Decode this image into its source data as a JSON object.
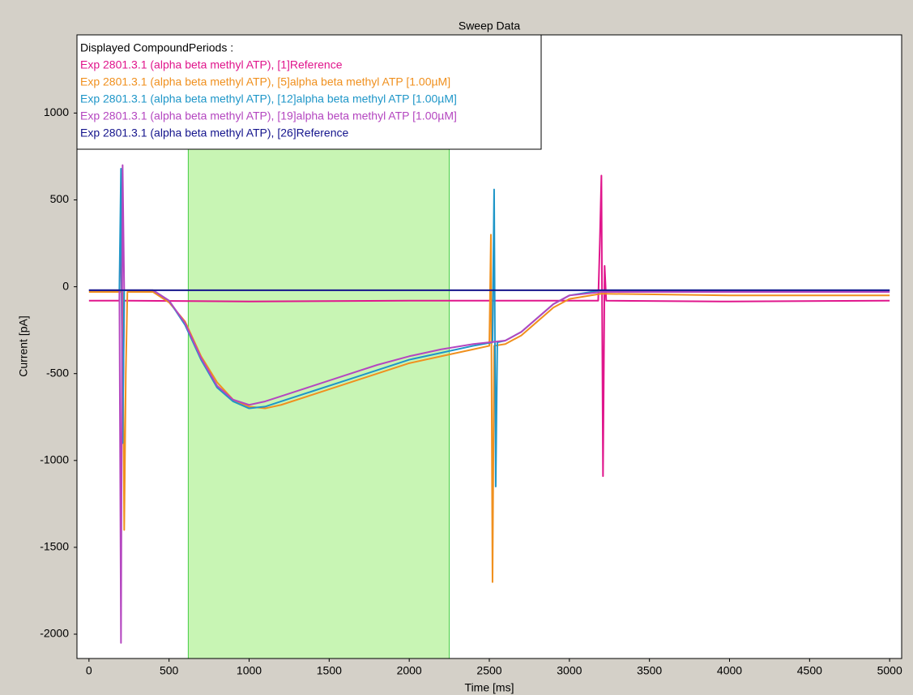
{
  "chart_data": {
    "type": "line",
    "title": "Sweep Data",
    "x_label": "Time [ms]",
    "y_label": "Current [pA]",
    "legend_title": "Displayed CompoundPeriods :",
    "xlim": [
      -75,
      5075
    ],
    "ylim": [
      -2140,
      1450
    ],
    "xticks": [
      0,
      500,
      1000,
      1500,
      2000,
      2500,
      3000,
      3500,
      4000,
      4500,
      5000
    ],
    "yticks": [
      1000,
      500,
      0,
      -500,
      -1000,
      -1500,
      -2000
    ],
    "highlight_xrange": [
      620,
      2250
    ],
    "highlight_color": "#c8f5b4",
    "series": [
      {
        "name": "Exp 2801.3.1 (alpha beta methyl ATP), [1]Reference",
        "color": "#e0168c",
        "x": [
          0,
          190,
          200,
          210,
          220,
          230,
          1000,
          2000,
          3180,
          3190,
          3200,
          3210,
          3220,
          3230,
          4000,
          5000
        ],
        "values": [
          -80,
          -80,
          500,
          -900,
          -80,
          -80,
          -85,
          -80,
          -80,
          250,
          640,
          -1090,
          120,
          -80,
          -85,
          -80
        ]
      },
      {
        "name": "Exp 2801.3.1 (alpha beta methyl ATP), [5]alpha beta methyl ATP [1.00µM]",
        "color": "#f0901e",
        "x": [
          0,
          210,
          220,
          230,
          240,
          400,
          500,
          600,
          700,
          800,
          900,
          1000,
          1100,
          1200,
          1400,
          1600,
          1800,
          2000,
          2200,
          2400,
          2500,
          2510,
          2520,
          2530,
          2600,
          2700,
          2800,
          2900,
          3000,
          3200,
          4000,
          5000
        ],
        "values": [
          -30,
          -30,
          -1400,
          -500,
          -30,
          -30,
          -90,
          -200,
          -400,
          -550,
          -650,
          -690,
          -700,
          -680,
          -620,
          -560,
          -500,
          -440,
          -400,
          -360,
          -340,
          300,
          -1700,
          -340,
          -330,
          -280,
          -200,
          -120,
          -70,
          -40,
          -50,
          -50
        ]
      },
      {
        "name": "Exp 2801.3.1 (alpha beta methyl ATP), [12]alpha beta methyl ATP [1.00µM]",
        "color": "#1e96c8",
        "x": [
          0,
          190,
          200,
          210,
          220,
          400,
          500,
          600,
          700,
          800,
          900,
          1000,
          1100,
          1200,
          1400,
          1600,
          1800,
          2000,
          2200,
          2400,
          2520,
          2530,
          2540,
          2550,
          2600,
          2700,
          2800,
          2900,
          3000,
          3200,
          4000,
          5000
        ],
        "values": [
          -20,
          -20,
          680,
          -900,
          -20,
          -20,
          -80,
          -220,
          -420,
          -580,
          -660,
          -700,
          -690,
          -660,
          -600,
          -540,
          -480,
          -420,
          -380,
          -340,
          -320,
          560,
          -1150,
          -320,
          -310,
          -260,
          -180,
          -100,
          -50,
          -20,
          -20,
          -20
        ]
      },
      {
        "name": "Exp 2801.3.1 (alpha beta methyl ATP), [19]alpha beta methyl ATP [1.00µM]",
        "color": "#b446c0",
        "x": [
          0,
          190,
          200,
          210,
          220,
          400,
          500,
          600,
          700,
          800,
          900,
          1000,
          1100,
          1200,
          1400,
          1600,
          1800,
          2000,
          2200,
          2400,
          2600,
          2700,
          2800,
          2900,
          3000,
          3200,
          4000,
          5000
        ],
        "values": [
          -20,
          -20,
          -2050,
          700,
          -20,
          -20,
          -80,
          -210,
          -410,
          -570,
          -650,
          -680,
          -660,
          -630,
          -570,
          -510,
          -450,
          -400,
          -360,
          -330,
          -310,
          -260,
          -180,
          -100,
          -50,
          -30,
          -30,
          -30
        ]
      },
      {
        "name": "Exp 2801.3.1 (alpha beta methyl ATP), [26]Reference",
        "color": "#14148c",
        "x": [
          0,
          1000,
          2000,
          3000,
          4000,
          5000
        ],
        "values": [
          -20,
          -20,
          -20,
          -20,
          -20,
          -20
        ]
      }
    ]
  }
}
